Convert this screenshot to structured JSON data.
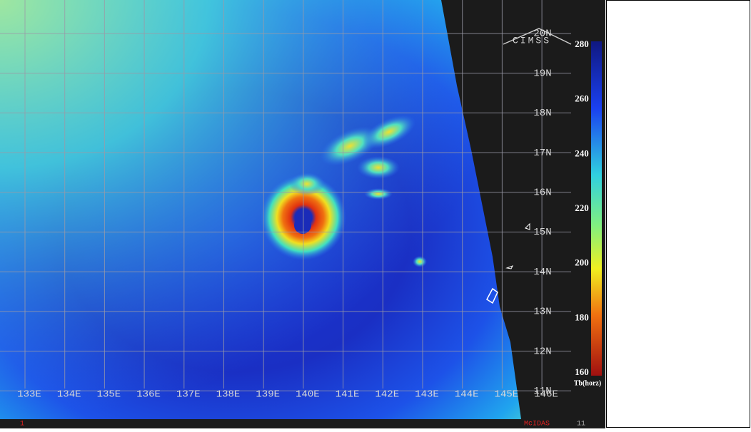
{
  "map": {
    "logo": "CIMSS",
    "lon_labels": [
      "133E",
      "134E",
      "135E",
      "136E",
      "137E",
      "138E",
      "139E",
      "140E",
      "141E",
      "142E",
      "143E",
      "144E",
      "145E",
      "146E"
    ],
    "lat_labels": [
      "20N",
      "19N",
      "18N",
      "17N",
      "16N",
      "15N",
      "14N",
      "13N",
      "12N",
      "11N"
    ],
    "colorbar": {
      "ticks": [
        280,
        260,
        240,
        220,
        200,
        180,
        160
      ],
      "label": "Tb(horz)"
    },
    "footer": {
      "left": "1",
      "center": "McIDAS",
      "right": "11"
    }
  }
}
